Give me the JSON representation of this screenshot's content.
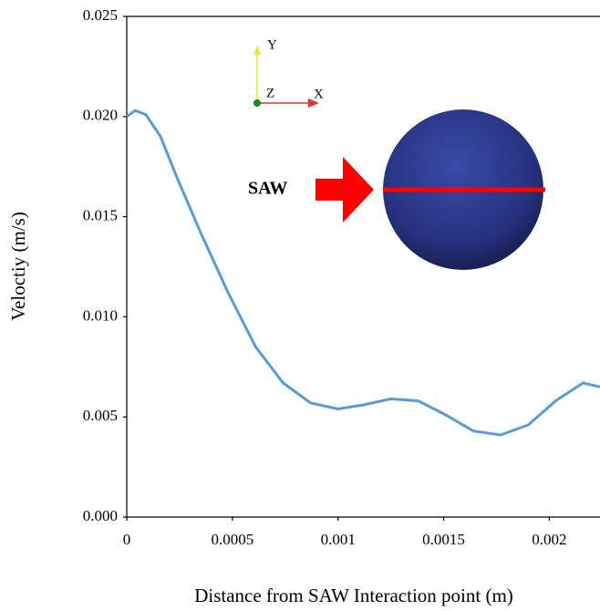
{
  "chart_data": {
    "type": "line",
    "x_label": "Distance from SAW Interaction point (m)",
    "y_label": "Veloctiy (m/s)",
    "x": [
      0,
      4e-05,
      9e-05,
      0.00016,
      0.00024,
      0.00035,
      0.00048,
      0.00061,
      0.00074,
      0.00087,
      0.001,
      0.00112,
      0.00125,
      0.00138,
      0.00151,
      0.00164,
      0.00177,
      0.0019,
      0.00203,
      0.00216,
      0.00224
    ],
    "series": [
      {
        "color": "#5b9bd5",
        "values": [
          0.02,
          0.0203,
          0.0201,
          0.019,
          0.0169,
          0.0142,
          0.0112,
          0.0085,
          0.0067,
          0.0057,
          0.0054,
          0.0056,
          0.0059,
          0.0058,
          0.0051,
          0.0043,
          0.0041,
          0.0046,
          0.0058,
          0.0067,
          0.0065
        ]
      }
    ],
    "xlim": [
      0,
      0.00224
    ],
    "xticks": [
      0,
      0.0005,
      0.001,
      0.0015,
      0.002
    ],
    "ylim": [
      0,
      0.025
    ],
    "yticks": [
      {
        "value": 0,
        "label": "0.000"
      },
      {
        "value": 0.005,
        "label": "0.005"
      },
      {
        "value": 0.01,
        "label": "0.010"
      },
      {
        "value": 0.015,
        "label": "0.015"
      },
      {
        "value": 0.02,
        "label": "0.020"
      },
      {
        "value": 0.025,
        "label": "0.025"
      }
    ],
    "grid": false,
    "inset_labels": [
      "SAW",
      "Y",
      "Z",
      "X"
    ]
  }
}
